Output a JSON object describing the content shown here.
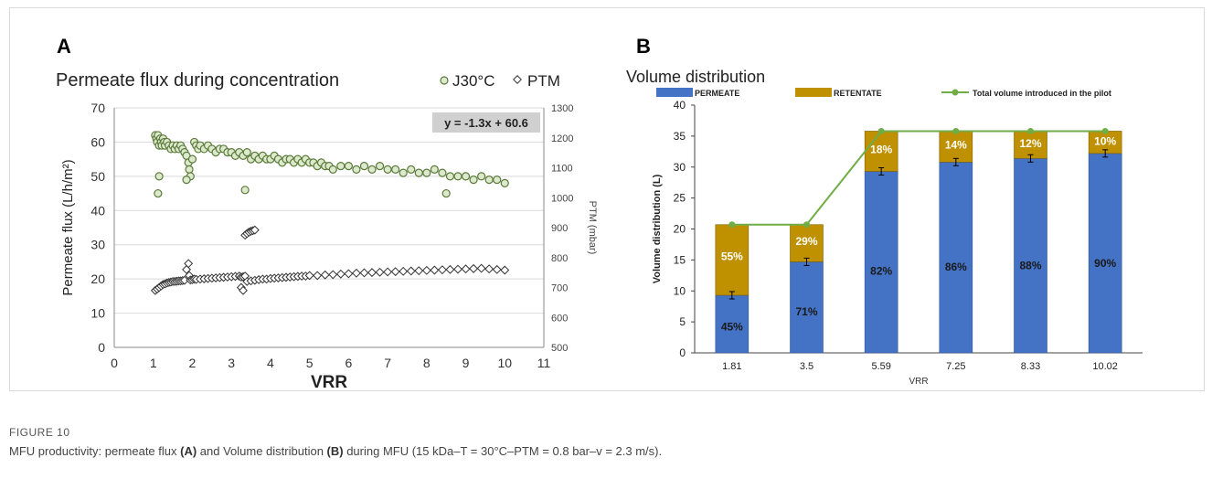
{
  "panel_a_letter": "A",
  "panel_b_letter": "B",
  "figure_label": "FIGURE 10",
  "caption": {
    "prefix": "MFU productivity: permeate flux ",
    "bold_a": "(A)",
    "middle": " and Volume distribution ",
    "bold_b": "(B)",
    "suffix": " during MFU (15 kDa–T = 30°C–PTM = 0.8 bar–v = 2.3 m/s)."
  },
  "chart_data": [
    {
      "type": "scatter",
      "title": "Permeate flux during concentration",
      "xlabel": "VRR",
      "ylabel": "Permeate flux (L/h/m²)",
      "y2label": "PTM (mbar)",
      "xlim": [
        0,
        11
      ],
      "ylim": [
        0,
        70
      ],
      "y2lim": [
        500,
        1300
      ],
      "xticks": [
        "0",
        "1",
        "2",
        "3",
        "4",
        "5",
        "6",
        "7",
        "8",
        "9",
        "10",
        "11"
      ],
      "yticks": [
        "0",
        "10",
        "20",
        "30",
        "40",
        "50",
        "60",
        "70"
      ],
      "y2ticks": [
        "500",
        "600",
        "700",
        "800",
        "900",
        "1000",
        "1100",
        "1200",
        "1300"
      ],
      "equation": "y = -1.3x + 60.6",
      "legend_placement": "top-right",
      "grid": true,
      "series": [
        {
          "name": "J30°C",
          "axis": "left",
          "color": "#5a7a3a",
          "fill": "#dde9cc",
          "x": [
            1.05,
            1.08,
            1.1,
            1.12,
            1.15,
            1.18,
            1.2,
            1.22,
            1.25,
            1.28,
            1.3,
            1.35,
            1.4,
            1.45,
            1.5,
            1.55,
            1.6,
            1.65,
            1.7,
            1.75,
            1.8,
            1.85,
            1.9,
            1.92,
            1.95,
            2.0,
            2.05,
            2.1,
            2.15,
            2.2,
            2.3,
            2.4,
            2.5,
            2.6,
            2.7,
            2.8,
            2.9,
            3.0,
            3.1,
            3.2,
            3.3,
            3.4,
            3.5,
            3.6,
            3.7,
            3.8,
            3.9,
            4.0,
            4.1,
            4.2,
            4.3,
            4.4,
            4.5,
            4.6,
            4.7,
            4.8,
            4.9,
            5.0,
            5.1,
            5.2,
            5.3,
            5.4,
            5.5,
            5.6,
            5.8,
            6.0,
            6.2,
            6.4,
            6.6,
            6.8,
            7.0,
            7.2,
            7.4,
            7.6,
            7.8,
            8.0,
            8.2,
            8.4,
            8.6,
            8.8,
            9.0,
            9.2,
            9.4,
            9.6,
            9.8,
            10.0,
            1.12,
            1.15,
            1.85,
            3.35,
            8.5
          ],
          "y": [
            62,
            61,
            60,
            62,
            59,
            61,
            60,
            59,
            61,
            60,
            59,
            60,
            59,
            58,
            59,
            58,
            59,
            58,
            59,
            58,
            57,
            56,
            54,
            52,
            50,
            55,
            60,
            59,
            58,
            59,
            58,
            59,
            58,
            57,
            58,
            58,
            57,
            57,
            56,
            57,
            56,
            57,
            55,
            56,
            55,
            56,
            55,
            55,
            56,
            55,
            54,
            55,
            55,
            54,
            55,
            54,
            55,
            54,
            54,
            53,
            54,
            53,
            53,
            52,
            53,
            53,
            52,
            53,
            52,
            53,
            52,
            52,
            51,
            52,
            51,
            51,
            52,
            51,
            50,
            50,
            50,
            49,
            50,
            49,
            49,
            48,
            45,
            50,
            49,
            46,
            45
          ]
        },
        {
          "name": "PTM",
          "axis": "right",
          "color": "#333333",
          "fill": "#ffffff",
          "x": [
            1.05,
            1.1,
            1.15,
            1.2,
            1.25,
            1.3,
            1.35,
            1.4,
            1.45,
            1.5,
            1.55,
            1.6,
            1.65,
            1.7,
            1.75,
            1.8,
            1.85,
            1.9,
            1.92,
            1.95,
            2.0,
            2.05,
            2.1,
            2.2,
            2.3,
            2.4,
            2.5,
            2.6,
            2.7,
            2.8,
            2.9,
            3.0,
            3.1,
            3.2,
            3.25,
            3.3,
            3.35,
            3.4,
            3.45,
            3.5,
            3.55,
            3.6,
            3.25,
            3.3,
            3.35,
            3.4,
            3.5,
            3.6,
            3.7,
            3.8,
            3.9,
            4.0,
            4.1,
            4.2,
            4.3,
            4.4,
            4.5,
            4.6,
            4.7,
            4.8,
            4.9,
            5.0,
            5.2,
            5.4,
            5.6,
            5.8,
            6.0,
            6.2,
            6.4,
            6.6,
            6.8,
            7.0,
            7.2,
            7.4,
            7.6,
            7.8,
            8.0,
            8.2,
            8.4,
            8.6,
            8.8,
            9.0,
            9.2,
            9.4,
            9.6,
            9.8,
            10.0
          ],
          "y": [
            690,
            695,
            700,
            705,
            710,
            712,
            715,
            717,
            718,
            720,
            720,
            721,
            722,
            722,
            723,
            724,
            760,
            780,
            740,
            725,
            726,
            728,
            727,
            728,
            729,
            730,
            731,
            732,
            733,
            734,
            735,
            736,
            737,
            738,
            700,
            690,
            875,
            880,
            885,
            888,
            890,
            892,
            735,
            736,
            738,
            720,
            722,
            724,
            726,
            728,
            728,
            730,
            731,
            732,
            733,
            734,
            735,
            736,
            737,
            738,
            738,
            740,
            740,
            742,
            743,
            745,
            746,
            748,
            749,
            750,
            751,
            752,
            753,
            754,
            755,
            756,
            757,
            758,
            759,
            760,
            761,
            762,
            763,
            764,
            762,
            760,
            758
          ]
        }
      ]
    },
    {
      "type": "bar",
      "stacked": true,
      "title": "Volume distribution",
      "xlabel": "VRR",
      "ylabel": "Volume distribution (L)",
      "ylim": [
        0,
        40
      ],
      "yticks": [
        "0",
        "5",
        "10",
        "15",
        "20",
        "25",
        "30",
        "35",
        "40"
      ],
      "categories": [
        "1.81",
        "3.5",
        "5.59",
        "7.25",
        "8.33",
        "10.02"
      ],
      "legend_placement": "top",
      "series": [
        {
          "name": "PERMEATE",
          "color": "#4472c4",
          "values": [
            9.3,
            14.7,
            29.3,
            30.8,
            31.4,
            32.2
          ],
          "labels": [
            "45%",
            "71%",
            "82%",
            "86%",
            "88%",
            "90%"
          ],
          "label_color": "#1a1a1a"
        },
        {
          "name": "RETENTATE",
          "color": "#bf9000",
          "values": [
            11.4,
            6.0,
            6.5,
            5.0,
            4.4,
            3.6
          ],
          "labels": [
            "55%",
            "29%",
            "18%",
            "14%",
            "12%",
            "10%"
          ],
          "label_color": "#ffffff"
        }
      ],
      "line": {
        "name": "Total volume introduced in the pilot",
        "color": "#70ad47",
        "values": [
          20.7,
          20.7,
          35.8,
          35.8,
          35.8,
          35.8
        ]
      }
    }
  ]
}
